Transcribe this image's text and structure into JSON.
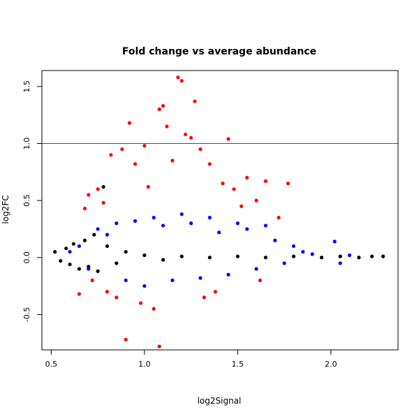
{
  "chart_data": {
    "type": "scatter",
    "title": "Fold change vs average abundance",
    "xlabel": "log2Signal",
    "ylabel": "log2FC",
    "xlim": [
      0.45,
      2.36
    ],
    "ylim": [
      -0.81,
      1.64
    ],
    "x_ticks": [
      0.5,
      1.0,
      1.5,
      2.0
    ],
    "x_tick_labels": [
      "0.5",
      "1.0",
      "1.5",
      "2.0"
    ],
    "y_ticks": [
      -0.5,
      0.0,
      0.5,
      1.0,
      1.5
    ],
    "y_tick_labels": [
      "-0.5",
      "0.0",
      "0.5",
      "1.0",
      "1.5"
    ],
    "reference_line": {
      "y": 1.0,
      "color": "#4040c0"
    },
    "grid": false,
    "legend": "none",
    "colors": {
      "black": "#000000",
      "blue": "#0000ff",
      "red": "#ff0000"
    },
    "series": [
      {
        "color": "#000000",
        "points": [
          [
            0.52,
            0.05
          ],
          [
            0.55,
            -0.03
          ],
          [
            0.58,
            0.08
          ],
          [
            0.6,
            -0.06
          ],
          [
            0.62,
            0.12
          ],
          [
            0.65,
            -0.1
          ],
          [
            0.68,
            0.15
          ],
          [
            0.7,
            -0.08
          ],
          [
            0.73,
            0.2
          ],
          [
            0.75,
            -0.12
          ],
          [
            0.78,
            0.62
          ],
          [
            0.8,
            0.1
          ],
          [
            0.85,
            -0.05
          ],
          [
            0.9,
            0.05
          ],
          [
            1.0,
            0.02
          ],
          [
            1.1,
            -0.02
          ],
          [
            1.2,
            0.01
          ],
          [
            1.35,
            0.0
          ],
          [
            1.5,
            0.01
          ],
          [
            1.65,
            0.0
          ],
          [
            1.8,
            0.01
          ],
          [
            1.95,
            0.0
          ],
          [
            2.05,
            0.01
          ],
          [
            2.15,
            0.0
          ],
          [
            2.22,
            0.01
          ],
          [
            2.28,
            0.01
          ]
        ]
      },
      {
        "color": "#0000ff",
        "points": [
          [
            0.6,
            0.05
          ],
          [
            0.65,
            0.1
          ],
          [
            0.7,
            -0.1
          ],
          [
            0.75,
            0.25
          ],
          [
            0.8,
            0.2
          ],
          [
            0.85,
            0.3
          ],
          [
            0.9,
            -0.2
          ],
          [
            0.95,
            0.32
          ],
          [
            1.0,
            -0.25
          ],
          [
            1.05,
            0.35
          ],
          [
            1.1,
            0.28
          ],
          [
            1.15,
            -0.2
          ],
          [
            1.2,
            0.38
          ],
          [
            1.25,
            0.3
          ],
          [
            1.3,
            -0.18
          ],
          [
            1.35,
            0.35
          ],
          [
            1.4,
            0.22
          ],
          [
            1.45,
            -0.15
          ],
          [
            1.5,
            0.3
          ],
          [
            1.55,
            0.25
          ],
          [
            1.6,
            -0.1
          ],
          [
            1.65,
            0.28
          ],
          [
            1.7,
            0.15
          ],
          [
            1.75,
            -0.05
          ],
          [
            1.8,
            0.1
          ],
          [
            1.85,
            0.05
          ],
          [
            1.9,
            0.03
          ],
          [
            2.02,
            0.14
          ],
          [
            2.05,
            -0.05
          ],
          [
            2.1,
            0.02
          ]
        ]
      },
      {
        "color": "#ff0000",
        "points": [
          [
            0.65,
            -0.32
          ],
          [
            0.68,
            0.43
          ],
          [
            0.7,
            0.55
          ],
          [
            0.72,
            -0.2
          ],
          [
            0.75,
            0.6
          ],
          [
            0.78,
            0.48
          ],
          [
            0.8,
            -0.3
          ],
          [
            0.82,
            0.9
          ],
          [
            0.85,
            -0.35
          ],
          [
            0.88,
            0.95
          ],
          [
            0.9,
            -0.72
          ],
          [
            0.92,
            1.18
          ],
          [
            0.95,
            0.82
          ],
          [
            0.98,
            -0.4
          ],
          [
            1.0,
            0.98
          ],
          [
            1.02,
            0.62
          ],
          [
            1.05,
            -0.45
          ],
          [
            1.08,
            1.3
          ],
          [
            1.08,
            -0.78
          ],
          [
            1.1,
            1.33
          ],
          [
            1.12,
            1.15
          ],
          [
            1.15,
            0.85
          ],
          [
            1.18,
            1.58
          ],
          [
            1.2,
            1.55
          ],
          [
            1.22,
            1.08
          ],
          [
            1.25,
            1.05
          ],
          [
            1.27,
            1.37
          ],
          [
            1.3,
            0.95
          ],
          [
            1.32,
            -0.35
          ],
          [
            1.35,
            0.82
          ],
          [
            1.38,
            -0.3
          ],
          [
            1.42,
            0.65
          ],
          [
            1.45,
            1.04
          ],
          [
            1.48,
            0.6
          ],
          [
            1.52,
            0.45
          ],
          [
            1.55,
            0.7
          ],
          [
            1.6,
            0.5
          ],
          [
            1.62,
            -0.2
          ],
          [
            1.65,
            0.67
          ],
          [
            1.72,
            0.35
          ],
          [
            1.77,
            0.65
          ]
        ]
      }
    ]
  }
}
